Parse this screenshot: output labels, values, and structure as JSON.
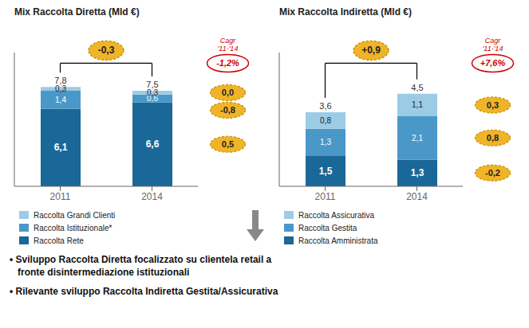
{
  "chart_data": [
    {
      "type": "bar",
      "stacked": true,
      "title": "Mix Raccolta Diretta (Mld €)",
      "categories": [
        "2011",
        "2014"
      ],
      "series": [
        {
          "name": "Raccolta Rete",
          "color": "#1a6898",
          "values": [
            6.1,
            6.6
          ],
          "value_labels": [
            "6,1",
            "6,6"
          ],
          "change": "0,5"
        },
        {
          "name": "Raccolta Istituzionale*",
          "color": "#4a98c8",
          "values": [
            1.4,
            0.6
          ],
          "value_labels": [
            "1,4",
            "0,6"
          ],
          "change": "-0,8"
        },
        {
          "name": "Raccolta Grandi Clienti",
          "color": "#9ccbe6",
          "values": [
            0.3,
            0.3
          ],
          "value_labels": [
            "0,3",
            "0,3"
          ],
          "change": "0,0"
        }
      ],
      "totals": [
        7.8,
        7.5
      ],
      "total_labels": [
        "7,8",
        "7,5"
      ],
      "annotations": {
        "change": "-0,3",
        "cagr_title": "Cagr\n'11-'14",
        "cagr": "-1,2%"
      },
      "ylim": [
        0,
        10.5
      ],
      "tick_labels": "x",
      "grid": false,
      "legend": "bottom",
      "data_labels": true
    },
    {
      "type": "bar",
      "stacked": true,
      "title": "Mix Raccolta Indiretta (Mld €)",
      "categories": [
        "2011",
        "2014"
      ],
      "series": [
        {
          "name": "Raccolta Amministrata",
          "color": "#1a6898",
          "values": [
            1.5,
            1.3
          ],
          "value_labels": [
            "1,5",
            "1,3"
          ],
          "change": "-0,2"
        },
        {
          "name": "Raccolta Gestita",
          "color": "#4a98c8",
          "values": [
            1.3,
            2.1
          ],
          "value_labels": [
            "1,3",
            "2,1"
          ],
          "change": "0,8"
        },
        {
          "name": "Raccolta Assicurativa",
          "color": "#9ccbe6",
          "values": [
            0.8,
            1.1
          ],
          "value_labels": [
            "0,8",
            "1,1"
          ],
          "change": "0,3"
        }
      ],
      "totals": [
        3.6,
        4.5
      ],
      "total_labels": [
        "3,6",
        "4,5"
      ],
      "annotations": {
        "change": "+0,9",
        "cagr_title": "Cagr\n'11-'14",
        "cagr": "+7,6%"
      },
      "ylim": [
        0,
        6.5
      ],
      "tick_labels": "x",
      "grid": false,
      "legend": "bottom",
      "data_labels": true
    }
  ],
  "texts": [
    "• Sviluppo Raccolta Diretta focalizzato su clientela retail a\nfronte disintermediazione istituzionali",
    "• Rilevante sviluppo Raccolta Indiretta Gestita/Assicurativa"
  ]
}
